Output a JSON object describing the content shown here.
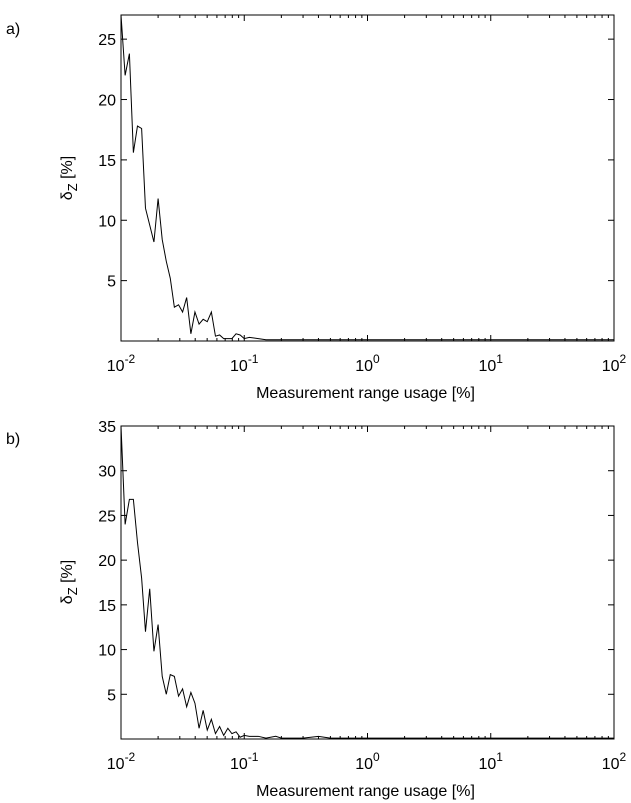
{
  "chart_data": [
    {
      "panel_label": "a)",
      "type": "line",
      "xlabel": "Measurement range usage [%]",
      "ylabel": "δZ [%]",
      "ylabel_main": "δ",
      "ylabel_sub": "Z",
      "ylabel_unit": " [%]",
      "xscale": "log",
      "xlim": [
        0.01,
        100
      ],
      "ylim": [
        0,
        27
      ],
      "xticks": [
        {
          "value": 0.01,
          "base": "10",
          "exp": "-2"
        },
        {
          "value": 0.1,
          "base": "10",
          "exp": "-1"
        },
        {
          "value": 1,
          "base": "10",
          "exp": "0"
        },
        {
          "value": 10,
          "base": "10",
          "exp": "1"
        },
        {
          "value": 100,
          "base": "10",
          "exp": "2"
        }
      ],
      "yticks": [
        5,
        10,
        15,
        20,
        25
      ],
      "grid": false,
      "series": [
        {
          "x": [
            0.01,
            0.0108,
            0.0117,
            0.0126,
            0.0136,
            0.0147,
            0.0158,
            0.0171,
            0.0185,
            0.02,
            0.0216,
            0.0233,
            0.0251,
            0.0271,
            0.0293,
            0.0316,
            0.0341,
            0.0369,
            0.0398,
            0.043,
            0.0464,
            0.0501,
            0.0541,
            0.0584,
            0.0631,
            0.0681,
            0.0736,
            0.0794,
            0.0858,
            0.0926,
            0.1,
            0.11,
            0.13,
            0.15,
            0.18,
            0.2,
            0.22,
            0.3,
            0.5,
            1,
            2,
            5,
            10,
            20,
            50,
            100
          ],
          "y": [
            27,
            22,
            23.8,
            15.6,
            17.8,
            17.6,
            11,
            9.6,
            8.2,
            11.8,
            8.4,
            6.6,
            5.2,
            2.8,
            3,
            2.4,
            3.6,
            0.6,
            2.4,
            1.4,
            1.8,
            1.6,
            2.4,
            0.4,
            0.5,
            0.2,
            0.2,
            0.2,
            0.6,
            0.5,
            0.2,
            0.3,
            0.2,
            0.1,
            0.1,
            0.1,
            0.1,
            0.1,
            0.1,
            0.1,
            0.1,
            0.1,
            0.1,
            0.1,
            0.1,
            0.1
          ]
        }
      ]
    },
    {
      "panel_label": "b)",
      "type": "line",
      "xlabel": "Measurement range usage [%]",
      "ylabel": "δZ [%]",
      "ylabel_main": "δ",
      "ylabel_sub": "Z",
      "ylabel_unit": " [%]",
      "xscale": "log",
      "xlim": [
        0.01,
        100
      ],
      "ylim": [
        0,
        35
      ],
      "xticks": [
        {
          "value": 0.01,
          "base": "10",
          "exp": "-2"
        },
        {
          "value": 0.1,
          "base": "10",
          "exp": "-1"
        },
        {
          "value": 1,
          "base": "10",
          "exp": "0"
        },
        {
          "value": 10,
          "base": "10",
          "exp": "1"
        },
        {
          "value": 100,
          "base": "10",
          "exp": "2"
        }
      ],
      "yticks": [
        5,
        10,
        15,
        20,
        25,
        30,
        35
      ],
      "grid": false,
      "series": [
        {
          "x": [
            0.01,
            0.0108,
            0.0117,
            0.0126,
            0.0136,
            0.0147,
            0.0158,
            0.0171,
            0.0185,
            0.02,
            0.0216,
            0.0233,
            0.0251,
            0.0271,
            0.0293,
            0.0316,
            0.0341,
            0.0369,
            0.0398,
            0.043,
            0.0464,
            0.0501,
            0.0541,
            0.0584,
            0.0631,
            0.0681,
            0.0736,
            0.0794,
            0.0858,
            0.0926,
            0.1,
            0.11,
            0.13,
            0.15,
            0.18,
            0.2,
            0.25,
            0.3,
            0.4,
            0.5,
            1,
            2,
            5,
            10,
            20,
            50,
            100
          ],
          "y": [
            35,
            24,
            26.8,
            26.8,
            22,
            18,
            12,
            16.8,
            9.8,
            12.8,
            7,
            5,
            7.2,
            7,
            4.8,
            5.6,
            3.6,
            5.2,
            4,
            1.2,
            3.2,
            1,
            2.2,
            0.6,
            1.4,
            0.4,
            1.2,
            0.6,
            0.8,
            0.2,
            0.4,
            0.3,
            0.3,
            0.1,
            0.3,
            0.1,
            0.1,
            0.1,
            0.3,
            0.1,
            0.1,
            0.1,
            0.1,
            0.1,
            0.1,
            0.1,
            0.1
          ]
        }
      ]
    }
  ]
}
